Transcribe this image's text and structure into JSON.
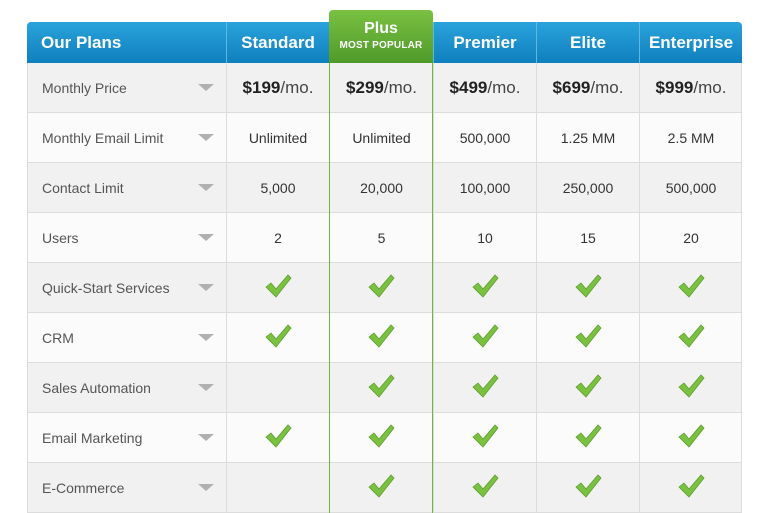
{
  "header": {
    "title": "Our Plans",
    "plans": [
      {
        "name": "Standard"
      },
      {
        "name": "Plus",
        "badge": "MOST POPULAR"
      },
      {
        "name": "Premier"
      },
      {
        "name": "Elite"
      },
      {
        "name": "Enterprise"
      }
    ]
  },
  "rows": [
    {
      "label": "Monthly Price",
      "type": "price",
      "values": [
        "$199",
        "$299",
        "$499",
        "$699",
        "$999"
      ],
      "suffix": "/mo."
    },
    {
      "label": "Monthly Email Limit",
      "type": "text",
      "values": [
        "Unlimited",
        "Unlimited",
        "500,000",
        "1.25 MM",
        "2.5 MM"
      ]
    },
    {
      "label": "Contact Limit",
      "type": "text",
      "values": [
        "5,000",
        "20,000",
        "100,000",
        "250,000",
        "500,000"
      ]
    },
    {
      "label": "Users",
      "type": "text",
      "values": [
        "2",
        "5",
        "10",
        "15",
        "20"
      ]
    },
    {
      "label": "Quick-Start Services",
      "type": "check",
      "values": [
        true,
        true,
        true,
        true,
        true
      ]
    },
    {
      "label": "CRM",
      "type": "check",
      "values": [
        true,
        true,
        true,
        true,
        true
      ]
    },
    {
      "label": "Sales Automation",
      "type": "check",
      "values": [
        false,
        true,
        true,
        true,
        true
      ]
    },
    {
      "label": "Email Marketing",
      "type": "check",
      "values": [
        true,
        true,
        true,
        true,
        true
      ]
    },
    {
      "label": "E-Commerce",
      "type": "check",
      "values": [
        false,
        true,
        true,
        true,
        true
      ]
    }
  ],
  "icons": {
    "dropdown": "chevron-down-icon",
    "check": "checkmark-icon"
  },
  "colors": {
    "header": "#1a8fcc",
    "highlight": "#6cb83a",
    "check": "#7ac142"
  }
}
